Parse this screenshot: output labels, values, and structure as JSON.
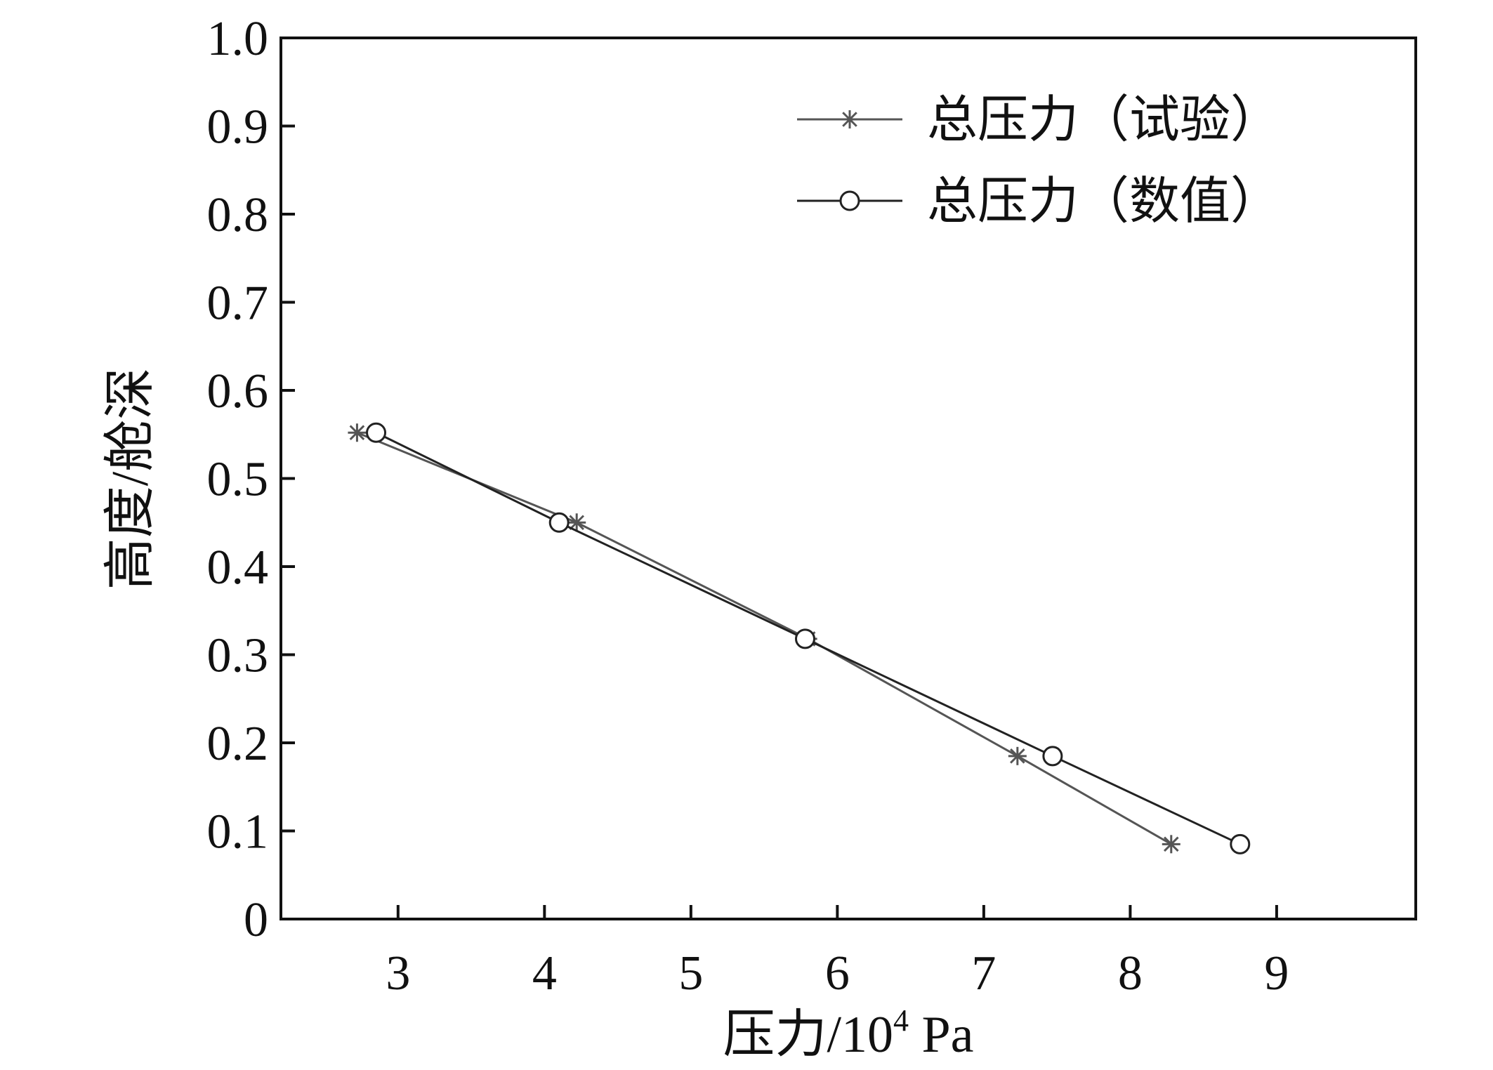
{
  "chart_data": {
    "type": "line",
    "title": "",
    "xlabel_main": "压力/10",
    "xlabel_sup": "4",
    "xlabel_unit": " Pa",
    "ylabel": "高度/舱深",
    "xlim": [
      2.2,
      9.95
    ],
    "ylim": [
      0,
      1.0
    ],
    "xticks": [
      3,
      4,
      5,
      6,
      7,
      8,
      9
    ],
    "yticks": [
      0,
      0.1,
      0.2,
      0.3,
      0.4,
      0.5,
      0.6,
      0.7,
      0.8,
      0.9,
      1.0
    ],
    "ytick_labels": [
      "0",
      "0.1",
      "0.2",
      "0.3",
      "0.4",
      "0.5",
      "0.6",
      "0.7",
      "0.8",
      "0.9",
      "1.0"
    ],
    "legend_position": "top-right",
    "series": [
      {
        "name": "总压力（试验）",
        "marker": "asterisk",
        "color": "#555555",
        "points": [
          [
            2.72,
            0.552
          ],
          [
            4.22,
            0.45
          ],
          [
            5.8,
            0.318
          ],
          [
            7.23,
            0.185
          ],
          [
            8.28,
            0.085
          ]
        ]
      },
      {
        "name": "总压力（数值）",
        "marker": "circle",
        "color": "#222222",
        "points": [
          [
            2.85,
            0.552
          ],
          [
            4.1,
            0.45
          ],
          [
            5.78,
            0.318
          ],
          [
            7.47,
            0.185
          ],
          [
            8.75,
            0.085
          ]
        ]
      }
    ]
  }
}
